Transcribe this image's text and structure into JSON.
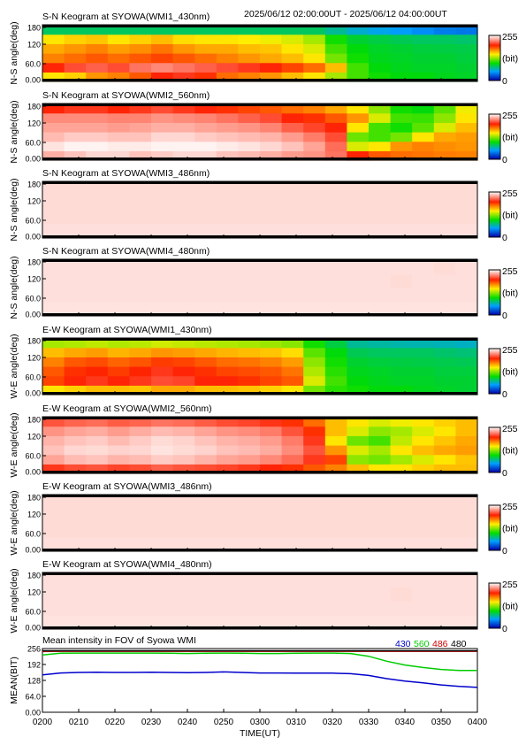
{
  "header": {
    "time_range": "2025/06/12 02:00:00UT - 2025/06/12 04:00:00UT"
  },
  "colorbar": {
    "max_label": "255",
    "unit_label": "(bit)",
    "min_label": "0"
  },
  "chart_data": [
    {
      "type": "heatmap",
      "title": "S-N Keogram at SYOWA(WMI1_430nm)",
      "ylabel": "N-S angle(deg)",
      "yticks": [
        "180",
        "120",
        "60.0",
        "0.00"
      ],
      "ylim": [
        0,
        180
      ],
      "clim": [
        0,
        255
      ],
      "rows_bottom_to_top": [
        [
          150,
          155,
          170,
          175,
          185,
          200,
          205,
          195,
          180,
          175,
          170,
          160,
          150,
          130,
          110,
          100,
          95,
          95,
          92,
          90
        ],
        [
          200,
          210,
          215,
          210,
          220,
          225,
          220,
          215,
          210,
          205,
          200,
          190,
          180,
          160,
          110,
          95,
          92,
          90,
          90,
          88
        ],
        [
          175,
          180,
          185,
          180,
          185,
          190,
          185,
          180,
          175,
          170,
          165,
          160,
          150,
          120,
          100,
          92,
          90,
          88,
          88,
          86
        ],
        [
          165,
          170,
          175,
          168,
          172,
          178,
          170,
          165,
          165,
          160,
          158,
          150,
          140,
          110,
          95,
          90,
          88,
          86,
          85,
          84
        ],
        [
          150,
          155,
          158,
          150,
          155,
          160,
          152,
          150,
          150,
          148,
          145,
          140,
          130,
          100,
          88,
          85,
          82,
          80,
          80,
          78
        ],
        [
          80,
          80,
          80,
          80,
          80,
          80,
          80,
          80,
          80,
          80,
          80,
          80,
          80,
          70,
          60,
          55,
          50,
          45,
          40,
          38
        ]
      ]
    },
    {
      "type": "heatmap",
      "title": "S-N Keogram at SYOWA(WMI2_560nm)",
      "ylabel": "N-S angle(deg)",
      "yticks": [
        "180",
        "120",
        "60.0",
        "0.00"
      ],
      "ylim": [
        0,
        180
      ],
      "clim": [
        0,
        255
      ],
      "rows_bottom_to_top": [
        [
          235,
          240,
          245,
          245,
          240,
          242,
          245,
          245,
          240,
          238,
          235,
          230,
          228,
          220,
          200,
          185,
          180,
          178,
          176,
          175
        ],
        [
          248,
          252,
          252,
          250,
          250,
          252,
          252,
          252,
          250,
          248,
          245,
          240,
          232,
          218,
          140,
          150,
          170,
          175,
          172,
          170
        ],
        [
          238,
          242,
          242,
          240,
          240,
          245,
          245,
          242,
          240,
          238,
          236,
          230,
          222,
          210,
          118,
          110,
          120,
          150,
          165,
          168
        ],
        [
          232,
          232,
          232,
          230,
          232,
          235,
          235,
          232,
          230,
          228,
          224,
          215,
          208,
          200,
          150,
          110,
          100,
          115,
          140,
          160
        ],
        [
          226,
          226,
          226,
          224,
          224,
          228,
          226,
          224,
          220,
          215,
          210,
          200,
          195,
          185,
          170,
          140,
          110,
          108,
          125,
          150
        ],
        [
          200,
          205,
          205,
          200,
          205,
          210,
          205,
          200,
          195,
          190,
          185,
          180,
          175,
          165,
          150,
          125,
          100,
          95,
          115,
          145
        ]
      ]
    },
    {
      "type": "heatmap",
      "title": "S-N Keogram at SYOWA(WMI3_486nm)",
      "ylabel": "N-S angle(deg)",
      "yticks": [
        "180",
        "120",
        "60.0",
        "0.00"
      ],
      "ylim": [
        0,
        180
      ],
      "clim": [
        0,
        255
      ],
      "rows_bottom_to_top": [
        [
          247,
          247,
          247,
          247,
          247,
          247,
          247,
          247,
          247,
          247,
          247,
          247,
          247,
          247,
          247,
          247,
          247,
          247,
          247,
          247
        ],
        [
          246,
          246,
          246,
          246,
          246,
          246,
          246,
          246,
          246,
          246,
          246,
          246,
          246,
          246,
          246,
          246,
          246,
          246,
          246,
          246
        ],
        [
          246,
          246,
          246,
          246,
          246,
          246,
          246,
          246,
          246,
          246,
          246,
          246,
          246,
          246,
          246,
          246,
          246,
          246,
          246,
          246
        ],
        [
          246,
          246,
          246,
          246,
          246,
          246,
          246,
          246,
          246,
          246,
          246,
          246,
          246,
          246,
          246,
          246,
          246,
          246,
          246,
          246
        ]
      ]
    },
    {
      "type": "heatmap",
      "title": "S-N Keogram at SYOWA(WMI4_480nm)",
      "ylabel": "N-S angle(deg)",
      "yticks": [
        "180",
        "120",
        "60.0",
        "0.00"
      ],
      "ylim": [
        0,
        180
      ],
      "clim": [
        0,
        255
      ],
      "rows_bottom_to_top": [
        [
          248,
          248,
          248,
          248,
          248,
          248,
          248,
          248,
          248,
          248,
          248,
          248,
          248,
          248,
          248,
          248,
          248,
          248,
          248,
          248
        ],
        [
          247,
          247,
          247,
          247,
          247,
          247,
          247,
          247,
          247,
          247,
          247,
          247,
          247,
          247,
          247,
          247,
          247,
          247,
          247,
          247
        ],
        [
          247,
          247,
          247,
          247,
          247,
          247,
          247,
          247,
          247,
          247,
          247,
          247,
          247,
          247,
          247,
          247,
          246,
          247,
          247,
          247
        ],
        [
          247,
          247,
          247,
          247,
          247,
          247,
          247,
          247,
          247,
          247,
          247,
          247,
          247,
          247,
          247,
          247,
          247,
          247,
          246,
          247
        ]
      ]
    },
    {
      "type": "heatmap",
      "title": "E-W Keogram at SYOWA(WMI1_430nm)",
      "ylabel": "W-E angle(deg)",
      "yticks": [
        "180",
        "120",
        "60.0",
        "0.00"
      ],
      "ylim": [
        0,
        180
      ],
      "clim": [
        0,
        255
      ],
      "rows_bottom_to_top": [
        [
          150,
          155,
          160,
          160,
          158,
          165,
          165,
          160,
          160,
          158,
          155,
          150,
          120,
          105,
          100,
          95,
          95,
          92,
          90,
          88
        ],
        [
          190,
          200,
          205,
          200,
          205,
          210,
          208,
          200,
          200,
          195,
          190,
          185,
          140,
          110,
          95,
          92,
          90,
          90,
          88,
          88
        ],
        [
          185,
          195,
          198,
          192,
          198,
          205,
          200,
          195,
          190,
          188,
          185,
          178,
          132,
          105,
          92,
          90,
          88,
          88,
          86,
          86
        ],
        [
          175,
          185,
          188,
          182,
          186,
          192,
          190,
          185,
          180,
          178,
          175,
          168,
          125,
          100,
          88,
          86,
          85,
          84,
          83,
          82
        ],
        [
          160,
          165,
          168,
          162,
          165,
          170,
          168,
          165,
          162,
          160,
          158,
          152,
          115,
          95,
          82,
          80,
          80,
          80,
          78,
          76
        ],
        [
          130,
          132,
          135,
          132,
          134,
          138,
          136,
          134,
          132,
          130,
          128,
          124,
          100,
          85,
          70,
          68,
          66,
          65,
          64,
          62
        ]
      ]
    },
    {
      "type": "heatmap",
      "title": "E-W Keogram at SYOWA(WMI2_560nm)",
      "ylabel": "W-E angle(deg)",
      "yticks": [
        "180",
        "120",
        "60.0",
        "0.00"
      ],
      "ylim": [
        0,
        180
      ],
      "clim": [
        0,
        255
      ],
      "rows_bottom_to_top": [
        [
          205,
          210,
          212,
          208,
          210,
          215,
          212,
          210,
          208,
          205,
          200,
          195,
          185,
          175,
          160,
          150,
          150,
          155,
          160,
          160
        ],
        [
          232,
          238,
          240,
          236,
          238,
          242,
          240,
          236,
          232,
          230,
          225,
          218,
          205,
          190,
          125,
          120,
          130,
          140,
          150,
          158
        ],
        [
          240,
          245,
          246,
          244,
          245,
          248,
          246,
          244,
          240,
          238,
          234,
          226,
          212,
          170,
          140,
          130,
          150,
          160,
          165,
          168
        ],
        [
          236,
          240,
          242,
          238,
          242,
          246,
          244,
          240,
          236,
          234,
          230,
          222,
          205,
          150,
          118,
          110,
          135,
          150,
          158,
          165
        ],
        [
          228,
          232,
          234,
          230,
          234,
          238,
          236,
          232,
          228,
          226,
          222,
          212,
          195,
          160,
          140,
          125,
          130,
          140,
          150,
          160
        ],
        [
          212,
          216,
          218,
          214,
          216,
          220,
          218,
          214,
          210,
          208,
          204,
          195,
          180,
          160,
          150,
          140,
          145,
          150,
          155,
          160
        ]
      ]
    },
    {
      "type": "heatmap",
      "title": "E-W Keogram at SYOWA(WMI3_486nm)",
      "ylabel": "W-E angle(deg)",
      "yticks": [
        "180",
        "120",
        "60.0",
        "0.00"
      ],
      "ylim": [
        0,
        180
      ],
      "clim": [
        0,
        255
      ],
      "rows_bottom_to_top": [
        [
          247,
          247,
          247,
          247,
          247,
          247,
          247,
          247,
          247,
          247,
          247,
          247,
          247,
          247,
          247,
          247,
          247,
          247,
          247,
          247
        ],
        [
          246,
          246,
          246,
          246,
          246,
          246,
          246,
          246,
          246,
          246,
          246,
          246,
          246,
          246,
          246,
          246,
          246,
          246,
          246,
          246
        ],
        [
          246,
          246,
          246,
          246,
          246,
          246,
          246,
          246,
          246,
          246,
          246,
          246,
          246,
          246,
          246,
          246,
          246,
          246,
          246,
          246
        ],
        [
          246,
          246,
          246,
          246,
          246,
          246,
          246,
          246,
          246,
          246,
          246,
          246,
          246,
          246,
          246,
          246,
          246,
          246,
          246,
          246
        ]
      ]
    },
    {
      "type": "heatmap",
      "title": "E-W Keogram at SYOWA(WMI4_480nm)",
      "ylabel": "W-E angle(deg)",
      "yticks": [
        "180",
        "120",
        "60.0",
        "0.00"
      ],
      "ylim": [
        0,
        180
      ],
      "clim": [
        0,
        255
      ],
      "rows_bottom_to_top": [
        [
          248,
          248,
          248,
          248,
          248,
          248,
          248,
          248,
          248,
          248,
          248,
          248,
          248,
          248,
          248,
          248,
          248,
          248,
          248,
          248
        ],
        [
          247,
          247,
          247,
          247,
          247,
          247,
          247,
          247,
          247,
          247,
          247,
          247,
          247,
          247,
          247,
          247,
          247,
          247,
          247,
          247
        ],
        [
          247,
          247,
          247,
          247,
          247,
          247,
          247,
          247,
          247,
          247,
          247,
          247,
          247,
          247,
          247,
          247,
          246,
          247,
          247,
          247
        ],
        [
          247,
          247,
          247,
          247,
          247,
          247,
          247,
          247,
          247,
          247,
          247,
          247,
          247,
          247,
          247,
          247,
          247,
          247,
          247,
          247
        ]
      ]
    },
    {
      "type": "line",
      "title": "Mean intensity in FOV of Syowa WMI",
      "ylabel": "MEAN(BIT)",
      "xlabel": "TIME(UT)",
      "xticks": [
        "0200",
        "0210",
        "0220",
        "0230",
        "0240",
        "0250",
        "0300",
        "0310",
        "0320",
        "0330",
        "0340",
        "0350",
        "0400"
      ],
      "yticks": [
        "256",
        "192",
        "128",
        "64.0",
        "0.00"
      ],
      "ylim": [
        0,
        256
      ],
      "x": [
        0,
        5,
        10,
        15,
        20,
        25,
        30,
        35,
        40,
        45,
        50,
        55,
        60,
        65,
        70,
        75,
        80,
        85,
        90,
        95,
        100,
        105,
        110,
        115,
        120
      ],
      "series": [
        {
          "name": "430",
          "color": "#0000cc",
          "values": [
            150,
            158,
            160,
            161,
            160,
            160,
            161,
            160,
            159,
            160,
            162,
            160,
            158,
            158,
            157,
            157,
            157,
            155,
            148,
            135,
            125,
            118,
            110,
            104,
            100
          ]
        },
        {
          "name": "560",
          "color": "#00cc00",
          "values": [
            230,
            237,
            238,
            238,
            238,
            238,
            238,
            237,
            236,
            237,
            238,
            237,
            236,
            236,
            237,
            238,
            238,
            236,
            225,
            205,
            190,
            180,
            172,
            168,
            168
          ]
        },
        {
          "name": "486",
          "color": "#cc0000",
          "values": [
            244,
            245,
            245,
            245,
            245,
            245,
            245,
            245,
            245,
            245,
            245,
            245,
            245,
            245,
            245,
            245,
            245,
            245,
            245,
            245,
            245,
            245,
            245,
            245,
            245
          ]
        },
        {
          "name": "480",
          "color": "#000000",
          "values": [
            247,
            247,
            247,
            247,
            247,
            247,
            247,
            247,
            247,
            247,
            247,
            247,
            247,
            247,
            247,
            247,
            247,
            247,
            247,
            247,
            247,
            247,
            247,
            247,
            247
          ]
        }
      ]
    }
  ]
}
